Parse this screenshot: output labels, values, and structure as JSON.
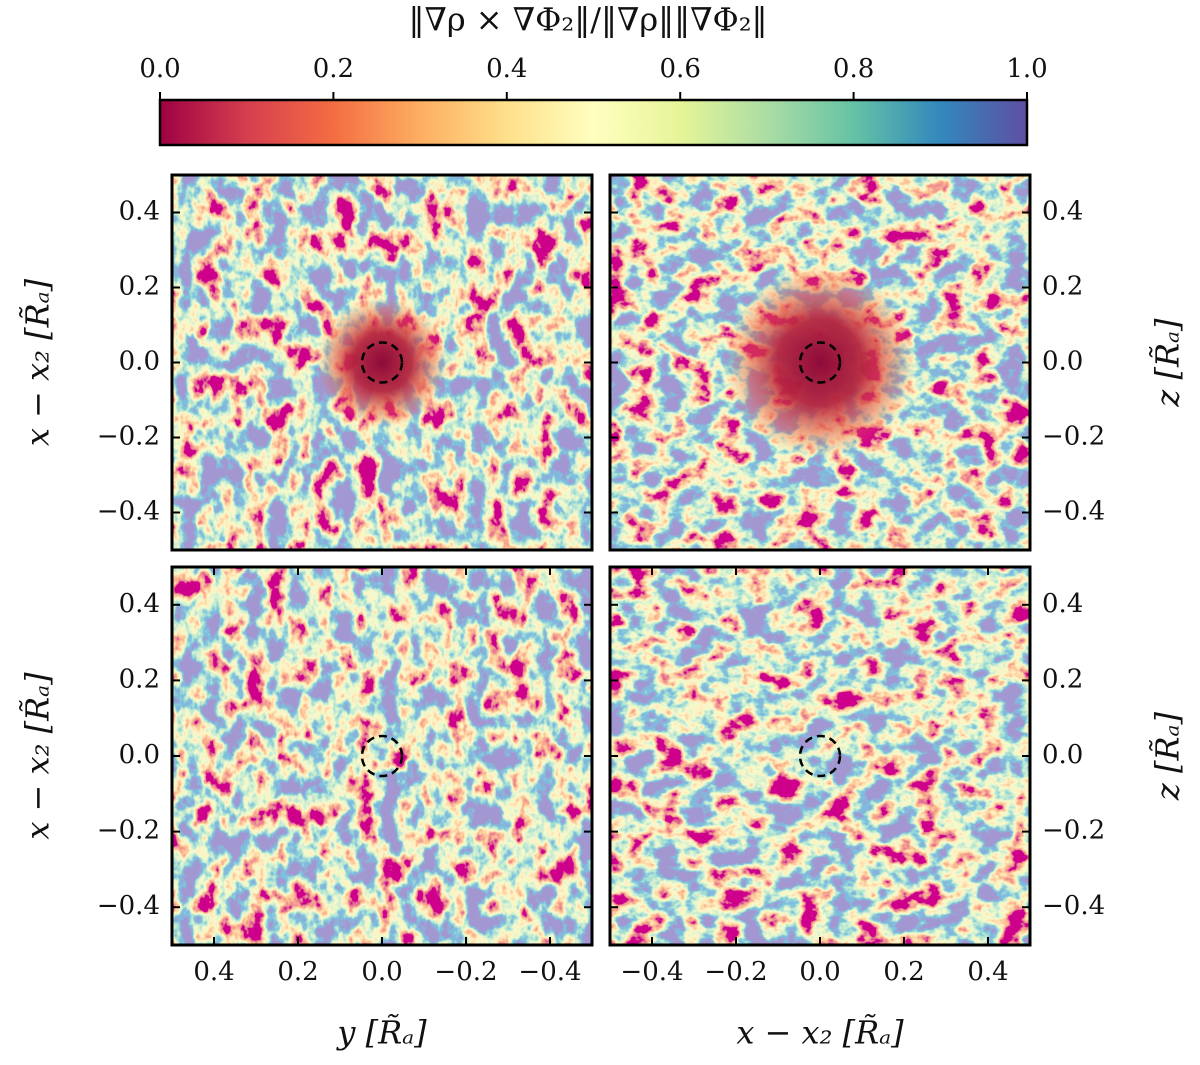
{
  "colorbar": {
    "label": "‖∇ρ × ∇Φ₂‖/‖∇ρ‖‖∇Φ₂‖",
    "lim": [
      0,
      1
    ],
    "ticks": [
      {
        "value": 0,
        "label": "0.0"
      },
      0.2,
      0.4,
      0.6,
      0.8,
      {
        "value": 1,
        "label": "1.0"
      }
    ]
  },
  "chart_data": [
    {
      "type": "heatmap",
      "xlim": [
        0.5,
        -0.5
      ],
      "ylim": [
        -0.5,
        0.5
      ],
      "yaxis_side": "left",
      "ylabel": "x − x₂ [R̃ₐ]",
      "yticks": [
        {
          "value": -0.4,
          "label": "−0.4"
        },
        {
          "value": -0.2,
          "label": "−0.2"
        },
        {
          "value": 0,
          "label": "0.0"
        },
        0.2,
        0.4
      ]
    },
    {
      "type": "heatmap",
      "xlim": [
        -0.5,
        0.5
      ],
      "ylim": [
        -0.5,
        0.5
      ],
      "yaxis_side": "right",
      "ylabel": "z [R̃ₐ]",
      "yticks": [
        {
          "value": -0.4,
          "label": "−0.4"
        },
        {
          "value": -0.2,
          "label": "−0.2"
        },
        {
          "value": 0,
          "label": "0.0"
        },
        0.2,
        0.4
      ]
    },
    {
      "type": "heatmap",
      "xlim": [
        0.5,
        -0.5
      ],
      "ylim": [
        -0.5,
        0.5
      ],
      "yaxis_side": "left",
      "ylabel": "x − x₂ [R̃ₐ]",
      "xlabel": "y [R̃ₐ]",
      "yticks": [
        {
          "value": -0.4,
          "label": "−0.4"
        },
        {
          "value": -0.2,
          "label": "−0.2"
        },
        {
          "value": 0,
          "label": "0.0"
        },
        0.2,
        0.4
      ],
      "xticks": [
        0.4,
        0.2,
        {
          "value": 0,
          "label": "0.0"
        },
        {
          "value": -0.2,
          "label": "−0.2"
        },
        {
          "value": -0.4,
          "label": "−0.4"
        }
      ]
    },
    {
      "type": "heatmap",
      "xlim": [
        -0.5,
        0.5
      ],
      "ylim": [
        -0.5,
        0.5
      ],
      "yaxis_side": "right",
      "ylabel": "z [R̃ₐ]",
      "xlabel": "x − x₂ [R̃ₐ]",
      "yticks": [
        {
          "value": -0.4,
          "label": "−0.4"
        },
        {
          "value": -0.2,
          "label": "−0.2"
        },
        {
          "value": 0,
          "label": "0.0"
        },
        0.2,
        0.4
      ],
      "xticks": [
        {
          "value": -0.4,
          "label": "−0.4"
        },
        {
          "value": -0.2,
          "label": "−0.2"
        },
        {
          "value": 0,
          "label": "0.0"
        },
        0.2,
        0.4
      ]
    }
  ]
}
